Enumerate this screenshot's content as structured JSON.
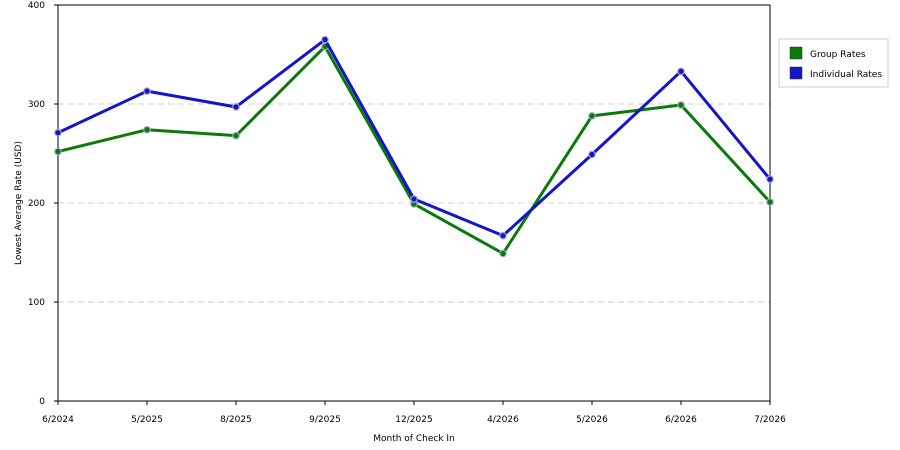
{
  "chart_data": {
    "type": "line",
    "title": "",
    "xlabel": "Month of Check In",
    "ylabel": "Lowest Average Rate (USD)",
    "categories": [
      "6/2024",
      "5/2025",
      "8/2025",
      "9/2025",
      "12/2025",
      "4/2026",
      "5/2026",
      "6/2026",
      "7/2026"
    ],
    "ylim": [
      0,
      400
    ],
    "yticks": [
      0,
      100,
      200,
      300,
      400
    ],
    "grid": true,
    "legend_position": "right",
    "series": [
      {
        "name": "Group Rates",
        "color": "#0a7a0a",
        "values": [
          252,
          274,
          268,
          358,
          199,
          149,
          288,
          299,
          201
        ]
      },
      {
        "name": "Individual Rates",
        "color": "#1414cc",
        "values": [
          271,
          313,
          297,
          365,
          204,
          167,
          249,
          333,
          224
        ]
      }
    ]
  }
}
